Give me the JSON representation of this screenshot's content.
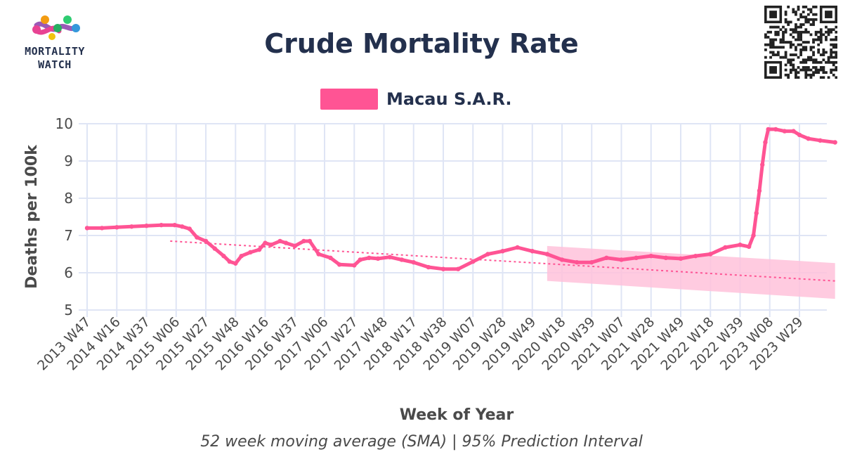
{
  "logo": {
    "line1": "MORTALITY",
    "line2": "WATCH"
  },
  "title": "Crude Mortality Rate",
  "subtitle": "52 week moving average (SMA) | 95% Prediction Interval",
  "legend": {
    "label": "Macau S.A.R.",
    "color": "#ff5494"
  },
  "qr_icon": "qr-code-icon",
  "chart_data": {
    "type": "line",
    "title": "Crude Mortality Rate",
    "xlabel": "Week of Year",
    "ylabel": "Deaths per 100k",
    "ylim": [
      5,
      10
    ],
    "yticks": [
      "5",
      "6",
      "7",
      "8",
      "9",
      "10"
    ],
    "xticks": [
      "2013 W47",
      "2014 W16",
      "2014 W37",
      "2015 W06",
      "2015 W27",
      "2015 W48",
      "2016 W16",
      "2016 W37",
      "2017 W06",
      "2017 W27",
      "2017 W48",
      "2018 W17",
      "2018 W38",
      "2019 W07",
      "2019 W28",
      "2019 W49",
      "2020 W18",
      "2020 W39",
      "2021 W07",
      "2021 W28",
      "2021 W49",
      "2022 W18",
      "2022 W39",
      "2023 W08",
      "2023 W29"
    ],
    "grid": true,
    "colors": {
      "series": "#ff5494",
      "band": "#ffc2db",
      "grid": "#dfe5f5"
    },
    "series": [
      {
        "name": "Macau S.A.R.",
        "points": [
          [
            0,
            7.2
          ],
          [
            0.5,
            7.2
          ],
          [
            1,
            7.22
          ],
          [
            1.5,
            7.24
          ],
          [
            2,
            7.26
          ],
          [
            2.5,
            7.28
          ],
          [
            2.95,
            7.28
          ],
          [
            3.2,
            7.24
          ],
          [
            3.45,
            7.18
          ],
          [
            3.7,
            6.95
          ],
          [
            4,
            6.85
          ],
          [
            4.3,
            6.65
          ],
          [
            4.6,
            6.45
          ],
          [
            4.8,
            6.3
          ],
          [
            5,
            6.25
          ],
          [
            5.2,
            6.45
          ],
          [
            5.5,
            6.55
          ],
          [
            5.8,
            6.62
          ],
          [
            6,
            6.8
          ],
          [
            6.2,
            6.75
          ],
          [
            6.5,
            6.85
          ],
          [
            6.7,
            6.8
          ],
          [
            7,
            6.72
          ],
          [
            7.3,
            6.85
          ],
          [
            7.5,
            6.85
          ],
          [
            7.8,
            6.5
          ],
          [
            8.2,
            6.4
          ],
          [
            8.5,
            6.22
          ],
          [
            9,
            6.2
          ],
          [
            9.2,
            6.35
          ],
          [
            9.5,
            6.4
          ],
          [
            9.8,
            6.38
          ],
          [
            10.2,
            6.42
          ],
          [
            10.6,
            6.35
          ],
          [
            11,
            6.28
          ],
          [
            11.5,
            6.15
          ],
          [
            12,
            6.1
          ],
          [
            12.5,
            6.1
          ],
          [
            13,
            6.3
          ],
          [
            13.5,
            6.5
          ],
          [
            14,
            6.58
          ],
          [
            14.5,
            6.68
          ],
          [
            15,
            6.58
          ],
          [
            15.5,
            6.5
          ],
          [
            16,
            6.35
          ],
          [
            16.5,
            6.28
          ],
          [
            17,
            6.28
          ],
          [
            17.5,
            6.4
          ],
          [
            18,
            6.35
          ],
          [
            18.5,
            6.4
          ],
          [
            19,
            6.45
          ],
          [
            19.5,
            6.4
          ],
          [
            20,
            6.38
          ],
          [
            20.5,
            6.45
          ],
          [
            21,
            6.5
          ],
          [
            21.5,
            6.68
          ],
          [
            22,
            6.75
          ],
          [
            22.3,
            6.7
          ],
          [
            22.45,
            7.0
          ],
          [
            22.55,
            7.6
          ],
          [
            22.65,
            8.2
          ],
          [
            22.75,
            8.9
          ],
          [
            22.85,
            9.5
          ],
          [
            22.95,
            9.85
          ],
          [
            23.2,
            9.85
          ],
          [
            23.5,
            9.8
          ],
          [
            23.8,
            9.8
          ],
          [
            24,
            9.7
          ],
          [
            24.3,
            9.6
          ],
          [
            24.7,
            9.55
          ],
          [
            25.2,
            9.5
          ]
        ]
      }
    ],
    "trend_line": {
      "x": [
        2.8,
        25.2
      ],
      "y": [
        6.85,
        5.78
      ]
    },
    "prediction_interval": {
      "x": [
        15.5,
        25.2
      ],
      "upper": [
        6.72,
        6.26
      ],
      "lower": [
        5.78,
        5.3
      ]
    }
  }
}
